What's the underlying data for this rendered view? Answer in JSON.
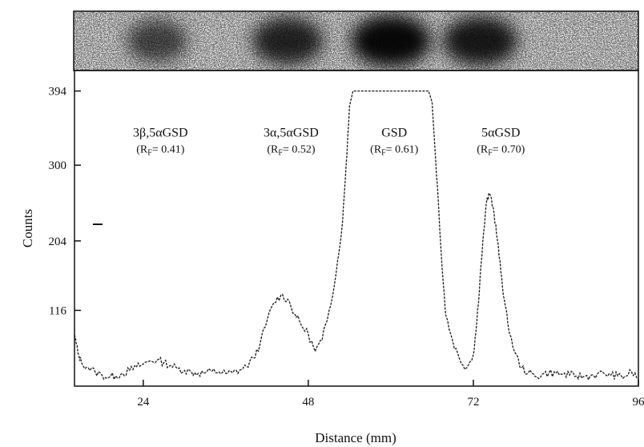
{
  "chart_data": {
    "type": "line",
    "title": "",
    "xlabel": "Distance (mm)",
    "ylabel": "Counts",
    "xlim": [
      14,
      96
    ],
    "ylim": [
      20,
      420
    ],
    "x_ticks": [
      {
        "value": 24,
        "label": "24"
      },
      {
        "value": 48,
        "label": "48"
      },
      {
        "value": 72,
        "label": "72"
      },
      {
        "value": 96,
        "label": "96"
      }
    ],
    "y_ticks": [
      {
        "value": 116,
        "label": "116"
      },
      {
        "value": 204,
        "label": "204"
      },
      {
        "value": 300,
        "label": "300"
      },
      {
        "value": 394,
        "label": "394"
      }
    ],
    "grid": false,
    "line_color": "#1a1a1a",
    "series": [
      {
        "x": [
          14,
          14.5,
          15,
          16,
          17,
          18,
          19,
          20,
          21,
          22,
          23,
          24,
          25,
          26,
          27,
          28,
          29,
          30,
          31,
          32,
          33,
          34,
          35,
          36,
          37,
          38,
          39,
          40,
          41,
          42,
          43,
          44,
          45,
          46,
          47,
          48,
          49,
          50,
          51,
          52,
          53,
          53.5,
          54,
          54.5,
          55,
          55.5,
          56,
          57,
          58,
          60,
          62,
          64,
          65,
          65.5,
          66,
          66.5,
          67,
          67.5,
          68,
          69,
          70,
          71,
          72,
          72.5,
          73,
          73.5,
          74,
          74.5,
          75,
          75.5,
          76,
          76.5,
          77,
          78,
          79,
          80,
          81,
          82,
          83,
          84,
          85,
          86,
          87,
          88,
          89,
          90,
          91,
          92,
          93,
          94,
          95,
          96
        ],
        "y": [
          85,
          62,
          50,
          43,
          38,
          34,
          31,
          33,
          36,
          40,
          44,
          48,
          52,
          53,
          50,
          46,
          42,
          40,
          38,
          36,
          37,
          39,
          38,
          36,
          37,
          40,
          45,
          55,
          74,
          103,
          126,
          135,
          130,
          112,
          97,
          86,
          64,
          78,
          115,
          160,
          230,
          300,
          375,
          394,
          394,
          394,
          394,
          394,
          394,
          394,
          394,
          394,
          394,
          394,
          380,
          310,
          240,
          165,
          110,
          77,
          54,
          43,
          60,
          100,
          160,
          215,
          258,
          262,
          240,
          205,
          165,
          130,
          100,
          63,
          43,
          37,
          32,
          35,
          37,
          36,
          35,
          34,
          33,
          32,
          33,
          35,
          36,
          34,
          33,
          32,
          38,
          30
        ]
      }
    ],
    "annotations": [
      {
        "name": "3β,5αGSD",
        "rf": "(R",
        "rf_sub": "F",
        "rf_value": "= 0.41)",
        "x": 26.5,
        "y": 322
      },
      {
        "name": "3α,5αGSD",
        "rf": "(R",
        "rf_sub": "F",
        "rf_value": "= 0.52)",
        "x": 45.5,
        "y": 322
      },
      {
        "name": "GSD",
        "rf": "(R",
        "rf_sub": "F",
        "rf_value": "= 0.61)",
        "x": 60.5,
        "y": 322
      },
      {
        "name": "5αGSD",
        "rf": "(R",
        "rf_sub": "F",
        "rf_value": "= 0.70)",
        "x": 76,
        "y": 322
      }
    ],
    "gel_image": {
      "present": true,
      "spots": [
        {
          "x": 26,
          "intensity": 0.45
        },
        {
          "x": 45,
          "intensity": 0.75
        },
        {
          "x": 60,
          "intensity": 1.0
        },
        {
          "x": 73,
          "intensity": 0.85
        }
      ]
    }
  }
}
